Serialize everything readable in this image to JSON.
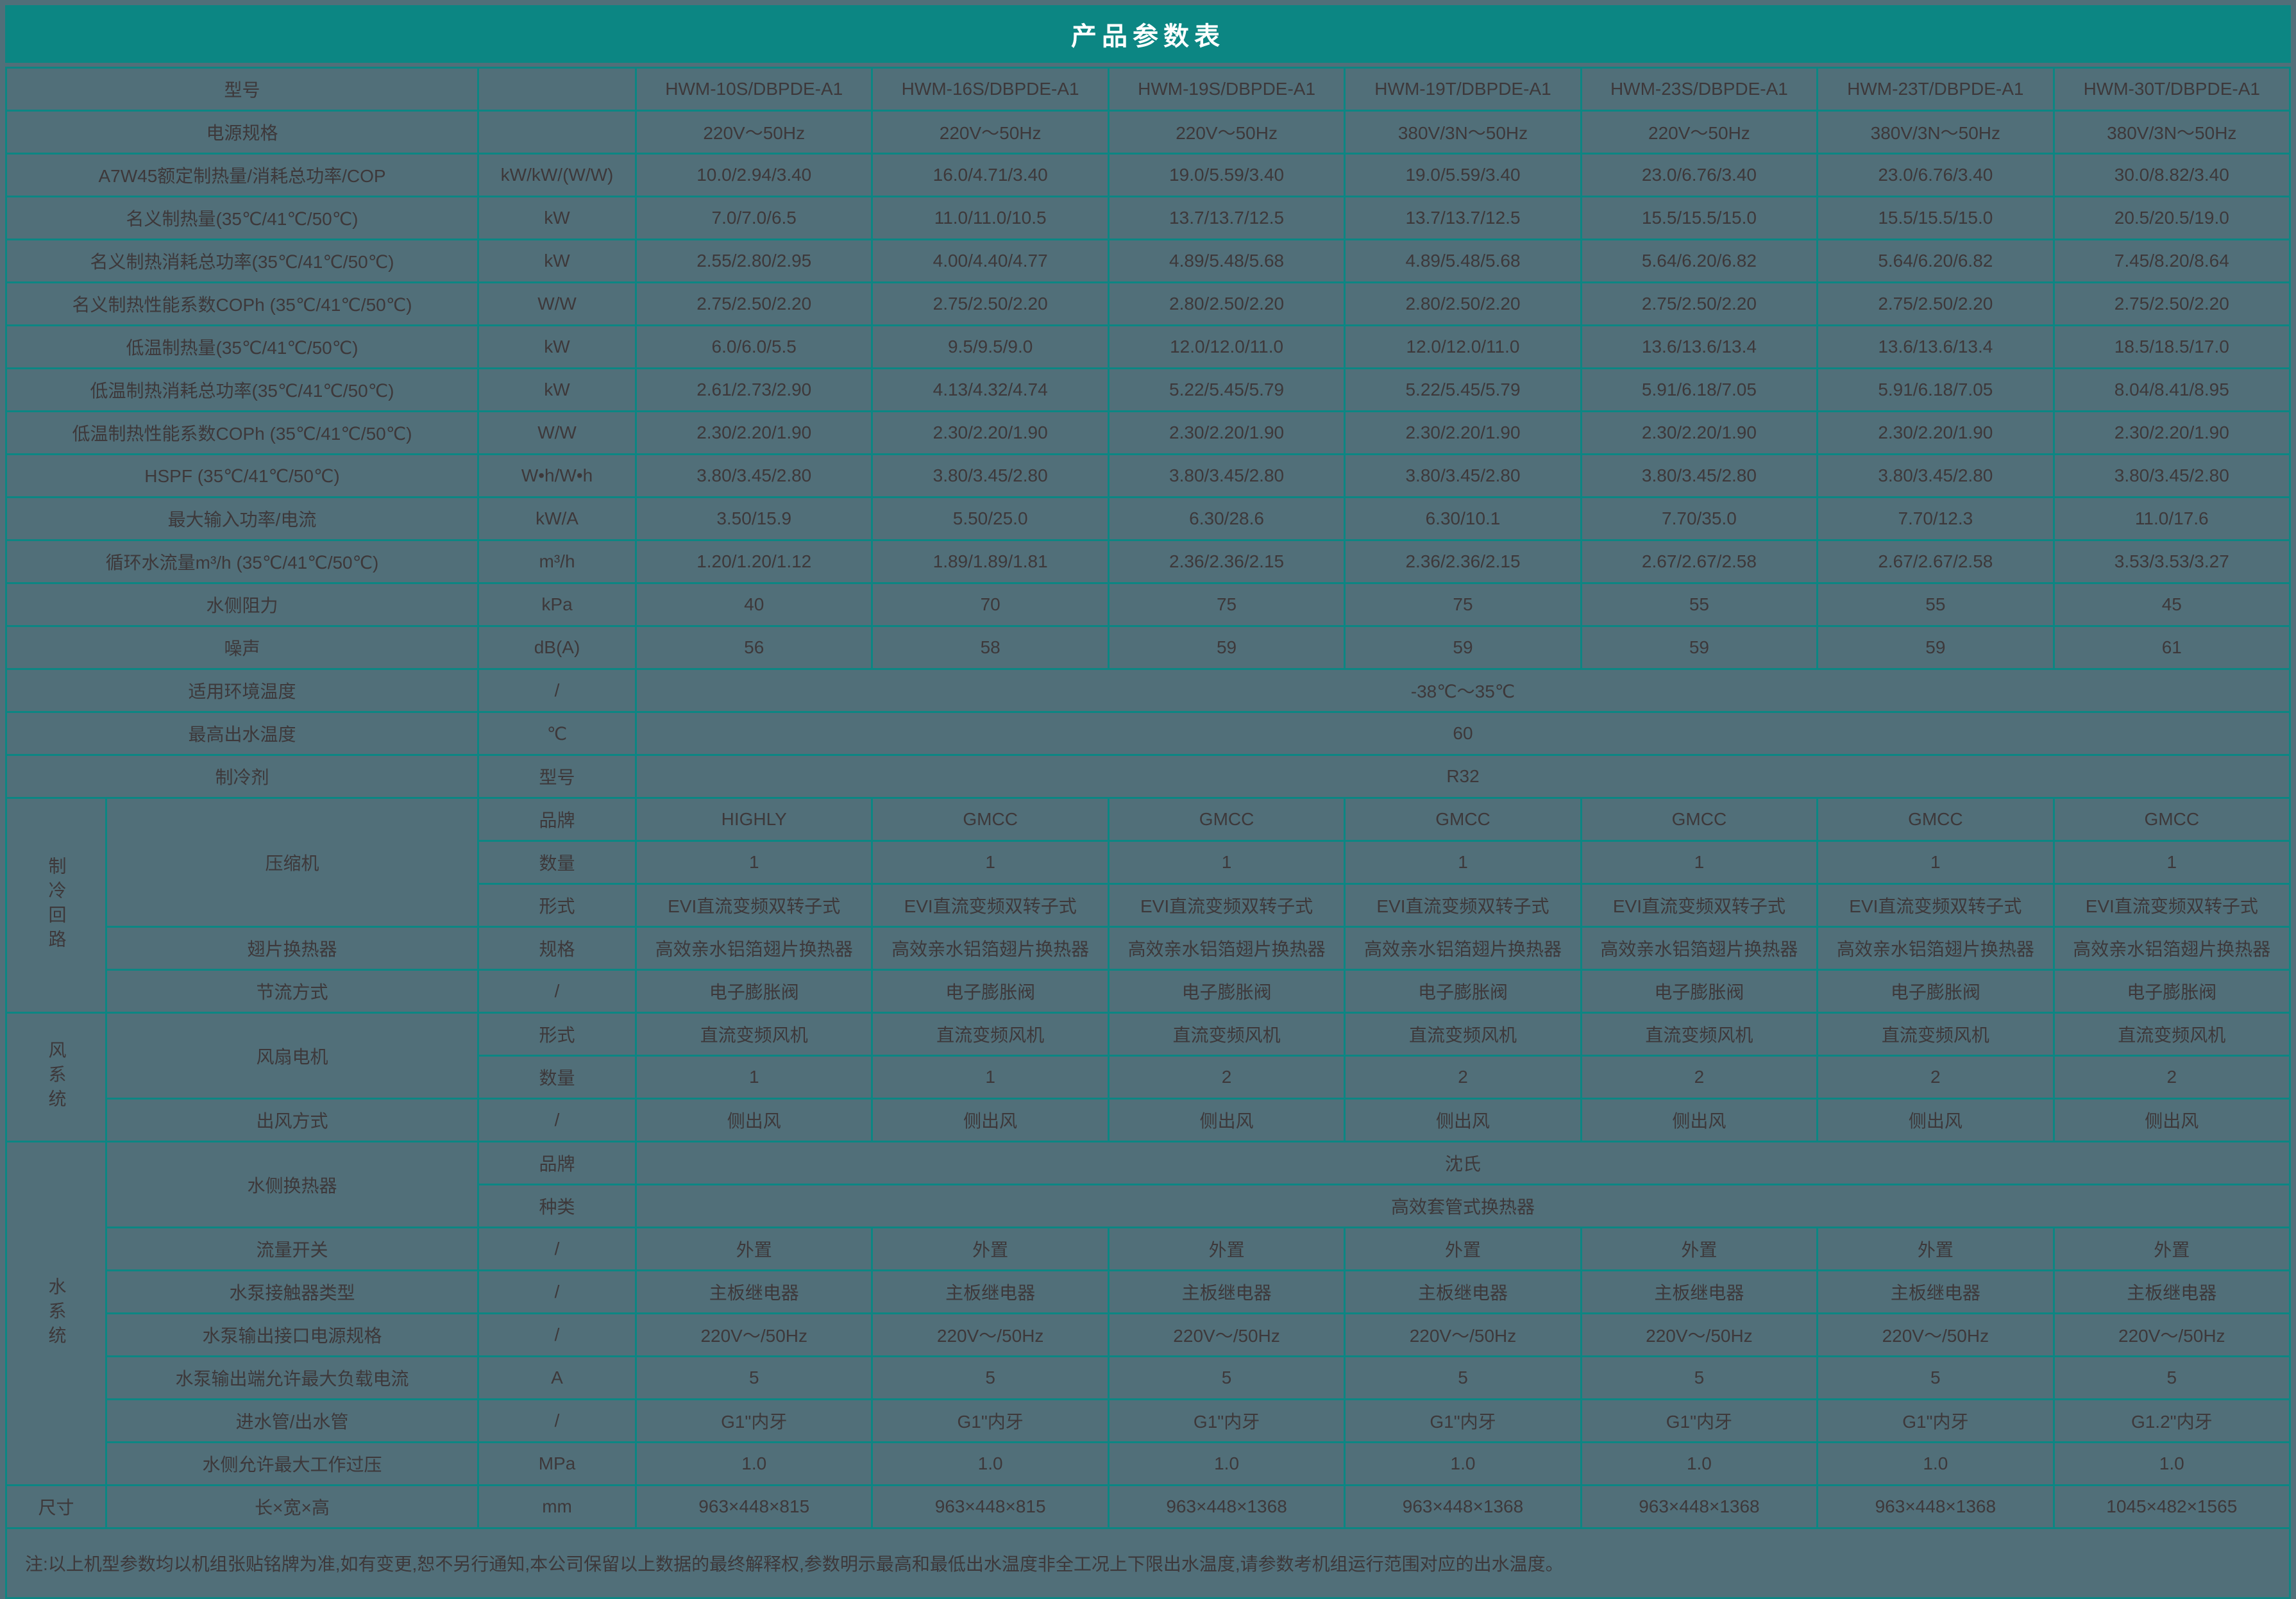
{
  "title": "产品参数表",
  "colors": {
    "teal": "#0C8683",
    "cellbg": "#516F79",
    "text": "#3D383A",
    "title_text": "#FFFFFF"
  },
  "table": {
    "rows": [
      {
        "label": "型号",
        "unit": "",
        "value_name": "model-name",
        "values": [
          "HWM-10S/DBPDE-A1",
          "HWM-16S/DBPDE-A1",
          "HWM-19S/DBPDE-A1",
          "HWM-19T/DBPDE-A1",
          "HWM-23S/DBPDE-A1",
          "HWM-23T/DBPDE-A1",
          "HWM-30T/DBPDE-A1"
        ]
      },
      {
        "label": "电源规格",
        "unit": "",
        "values": [
          "220V～50Hz",
          "220V～50Hz",
          "220V～50Hz",
          "380V/3N～50Hz",
          "220V～50Hz",
          "380V/3N～50Hz",
          "380V/3N～50Hz"
        ]
      },
      {
        "label": "A7W45额定制热量/消耗总功率/COP",
        "unit": "kW/kW/(W/W)",
        "values": [
          "10.0/2.94/3.40",
          "16.0/4.71/3.40",
          "19.0/5.59/3.40",
          "19.0/5.59/3.40",
          "23.0/6.76/3.40",
          "23.0/6.76/3.40",
          "30.0/8.82/3.40"
        ]
      },
      {
        "label": "名义制热量(35℃/41℃/50℃)",
        "unit": "kW",
        "values": [
          "7.0/7.0/6.5",
          "11.0/11.0/10.5",
          "13.7/13.7/12.5",
          "13.7/13.7/12.5",
          "15.5/15.5/15.0",
          "15.5/15.5/15.0",
          "20.5/20.5/19.0"
        ]
      },
      {
        "label": "名义制热消耗总功率(35℃/41℃/50℃)",
        "unit": "kW",
        "values": [
          "2.55/2.80/2.95",
          "4.00/4.40/4.77",
          "4.89/5.48/5.68",
          "4.89/5.48/5.68",
          "5.64/6.20/6.82",
          "5.64/6.20/6.82",
          "7.45/8.20/8.64"
        ]
      },
      {
        "label": "名义制热性能系数COPh (35℃/41℃/50℃)",
        "unit": "W/W",
        "values": [
          "2.75/2.50/2.20",
          "2.75/2.50/2.20",
          "2.80/2.50/2.20",
          "2.80/2.50/2.20",
          "2.75/2.50/2.20",
          "2.75/2.50/2.20",
          "2.75/2.50/2.20"
        ]
      },
      {
        "label": "低温制热量(35℃/41℃/50℃)",
        "unit": "kW",
        "values": [
          "6.0/6.0/5.5",
          "9.5/9.5/9.0",
          "12.0/12.0/11.0",
          "12.0/12.0/11.0",
          "13.6/13.6/13.4",
          "13.6/13.6/13.4",
          "18.5/18.5/17.0"
        ]
      },
      {
        "label": "低温制热消耗总功率(35℃/41℃/50℃)",
        "unit": "kW",
        "values": [
          "2.61/2.73/2.90",
          "4.13/4.32/4.74",
          "5.22/5.45/5.79",
          "5.22/5.45/5.79",
          "5.91/6.18/7.05",
          "5.91/6.18/7.05",
          "8.04/8.41/8.95"
        ]
      },
      {
        "label": "低温制热性能系数COPh (35℃/41℃/50℃)",
        "unit": "W/W",
        "values": [
          "2.30/2.20/1.90",
          "2.30/2.20/1.90",
          "2.30/2.20/1.90",
          "2.30/2.20/1.90",
          "2.30/2.20/1.90",
          "2.30/2.20/1.90",
          "2.30/2.20/1.90"
        ]
      },
      {
        "label": "HSPF (35℃/41℃/50℃)",
        "unit": "W•h/W•h",
        "values": [
          "3.80/3.45/2.80",
          "3.80/3.45/2.80",
          "3.80/3.45/2.80",
          "3.80/3.45/2.80",
          "3.80/3.45/2.80",
          "3.80/3.45/2.80",
          "3.80/3.45/2.80"
        ]
      },
      {
        "label": "最大输入功率/电流",
        "unit": "kW/A",
        "values": [
          "3.50/15.9",
          "5.50/25.0",
          "6.30/28.6",
          "6.30/10.1",
          "7.70/35.0",
          "7.70/12.3",
          "11.0/17.6"
        ]
      },
      {
        "label": "循环水流量m³/h (35℃/41℃/50℃)",
        "unit": "m³/h",
        "values": [
          "1.20/1.20/1.12",
          "1.89/1.89/1.81",
          "2.36/2.36/2.15",
          "2.36/2.36/2.15",
          "2.67/2.67/2.58",
          "2.67/2.67/2.58",
          "3.53/3.53/3.27"
        ]
      },
      {
        "label": "水侧阻力",
        "unit": "kPa",
        "values": [
          "40",
          "70",
          "75",
          "75",
          "55",
          "55",
          "45"
        ]
      },
      {
        "label": "噪声",
        "unit": "dB(A)",
        "values": [
          "56",
          "58",
          "59",
          "59",
          "59",
          "59",
          "61"
        ]
      },
      {
        "label": "适用环境温度",
        "unit": "/",
        "span": "-38℃～35℃"
      },
      {
        "label": "最高出水温度",
        "unit": "℃",
        "span": "60"
      },
      {
        "label": "制冷剂",
        "unit": "型号",
        "span": "R32"
      },
      {
        "group": {
          "text": "制冷回路",
          "rowspan": 5,
          "vertical": true
        },
        "sublabel": {
          "text": "压缩机",
          "rowspan": 3
        },
        "unit": "品牌",
        "values": [
          "HIGHLY",
          "GMCC",
          "GMCC",
          "GMCC",
          "GMCC",
          "GMCC",
          "GMCC"
        ]
      },
      {
        "unit": "数量",
        "values": [
          "1",
          "1",
          "1",
          "1",
          "1",
          "1",
          "1"
        ]
      },
      {
        "unit": "形式",
        "values": [
          "EVI直流变频双转子式",
          "EVI直流变频双转子式",
          "EVI直流变频双转子式",
          "EVI直流变频双转子式",
          "EVI直流变频双转子式",
          "EVI直流变频双转子式",
          "EVI直流变频双转子式"
        ]
      },
      {
        "sublabel": {
          "text": "翅片换热器",
          "rowspan": 1
        },
        "unit": "规格",
        "values": [
          "高效亲水铝箔翅片换热器",
          "高效亲水铝箔翅片换热器",
          "高效亲水铝箔翅片换热器",
          "高效亲水铝箔翅片换热器",
          "高效亲水铝箔翅片换热器",
          "高效亲水铝箔翅片换热器",
          "高效亲水铝箔翅片换热器"
        ]
      },
      {
        "sublabel": {
          "text": "节流方式",
          "rowspan": 1
        },
        "unit": "/",
        "values": [
          "电子膨胀阀",
          "电子膨胀阀",
          "电子膨胀阀",
          "电子膨胀阀",
          "电子膨胀阀",
          "电子膨胀阀",
          "电子膨胀阀"
        ]
      },
      {
        "group": {
          "text": "风系统",
          "rowspan": 3,
          "vertical": true
        },
        "sublabel": {
          "text": "风扇电机",
          "rowspan": 2
        },
        "unit": "形式",
        "values": [
          "直流变频风机",
          "直流变频风机",
          "直流变频风机",
          "直流变频风机",
          "直流变频风机",
          "直流变频风机",
          "直流变频风机"
        ]
      },
      {
        "unit": "数量",
        "values": [
          "1",
          "1",
          "2",
          "2",
          "2",
          "2",
          "2"
        ]
      },
      {
        "sublabel": {
          "text": "出风方式",
          "rowspan": 1
        },
        "unit": "/",
        "values": [
          "侧出风",
          "侧出风",
          "侧出风",
          "侧出风",
          "侧出风",
          "侧出风",
          "侧出风"
        ]
      },
      {
        "group": {
          "text": "水系统",
          "rowspan": 8,
          "vertical": true
        },
        "sublabel": {
          "text": "水侧换热器",
          "rowspan": 2
        },
        "unit": "品牌",
        "span": "沈氏"
      },
      {
        "unit": "种类",
        "span": "高效套管式换热器"
      },
      {
        "sublabel": {
          "text": "流量开关",
          "rowspan": 1
        },
        "unit": "/",
        "values": [
          "外置",
          "外置",
          "外置",
          "外置",
          "外置",
          "外置",
          "外置"
        ]
      },
      {
        "sublabel": {
          "text": "水泵接触器类型",
          "rowspan": 1
        },
        "unit": "/",
        "values": [
          "主板继电器",
          "主板继电器",
          "主板继电器",
          "主板继电器",
          "主板继电器",
          "主板继电器",
          "主板继电器"
        ]
      },
      {
        "sublabel": {
          "text": "水泵输出接口电源规格",
          "rowspan": 1
        },
        "unit": "/",
        "values": [
          "220V～/50Hz",
          "220V～/50Hz",
          "220V～/50Hz",
          "220V～/50Hz",
          "220V～/50Hz",
          "220V～/50Hz",
          "220V～/50Hz"
        ]
      },
      {
        "sublabel": {
          "text": "水泵输出端允许最大负载电流",
          "rowspan": 1
        },
        "unit": "A",
        "values": [
          "5",
          "5",
          "5",
          "5",
          "5",
          "5",
          "5"
        ]
      },
      {
        "sublabel": {
          "text": "进水管/出水管",
          "rowspan": 1
        },
        "unit": "/",
        "values": [
          "G1\"内牙",
          "G1\"内牙",
          "G1\"内牙",
          "G1\"内牙",
          "G1\"内牙",
          "G1\"内牙",
          "G1.2\"内牙"
        ]
      },
      {
        "sublabel": {
          "text": "水侧允许最大工作过压",
          "rowspan": 1
        },
        "unit": "MPa",
        "values": [
          "1.0",
          "1.0",
          "1.0",
          "1.0",
          "1.0",
          "1.0",
          "1.0"
        ]
      },
      {
        "group": {
          "text": "尺寸",
          "rowspan": 1,
          "vertical": false
        },
        "sublabel": {
          "text": "长×宽×高",
          "rowspan": 1
        },
        "unit": "mm",
        "values": [
          "963×448×815",
          "963×448×815",
          "963×448×1368",
          "963×448×1368",
          "963×448×1368",
          "963×448×1368",
          "1045×482×1565"
        ]
      }
    ]
  },
  "footnote": "注:以上机型参数均以机组张贴铭牌为准,如有变更,恕不另行通知,本公司保留以上数据的最终解释权,参数明示最高和最低出水温度非全工况上下限出水温度,请参数考机组运行范围对应的出水温度。"
}
